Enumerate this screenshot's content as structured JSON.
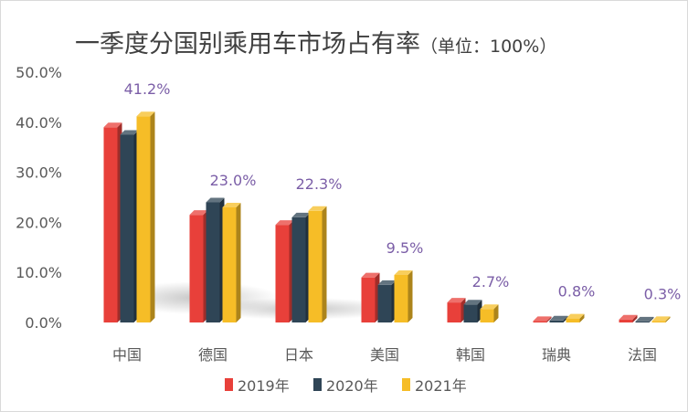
{
  "chart_data": {
    "type": "bar",
    "title": "一季度分国别乘用车市场占有率",
    "unit_note": "（单位：100%）",
    "categories": [
      "中国",
      "德国",
      "日本",
      "美国",
      "韩国",
      "瑞典",
      "法国"
    ],
    "series": [
      {
        "name": "2019年",
        "color": "#e8403a",
        "values": [
          39.0,
          21.5,
          19.5,
          9.0,
          4.0,
          0.3,
          0.6
        ]
      },
      {
        "name": "2020年",
        "color": "#2f4556",
        "values": [
          37.5,
          24.0,
          21.0,
          7.5,
          3.6,
          0.4,
          0.2
        ]
      },
      {
        "name": "2021年",
        "color": "#f6bd27",
        "values": [
          41.2,
          23.0,
          22.3,
          9.5,
          2.7,
          0.8,
          0.3
        ]
      }
    ],
    "data_labels": [
      "41.2%",
      "23.0%",
      "22.3%",
      "9.5%",
      "2.7%",
      "0.8%",
      "0.3%"
    ],
    "y_ticks": [
      "0.0%",
      "10.0%",
      "20.0%",
      "30.0%",
      "40.0%",
      "50.0%"
    ],
    "ylim": [
      0,
      50
    ],
    "grid": false,
    "legend_position": "bottom"
  }
}
